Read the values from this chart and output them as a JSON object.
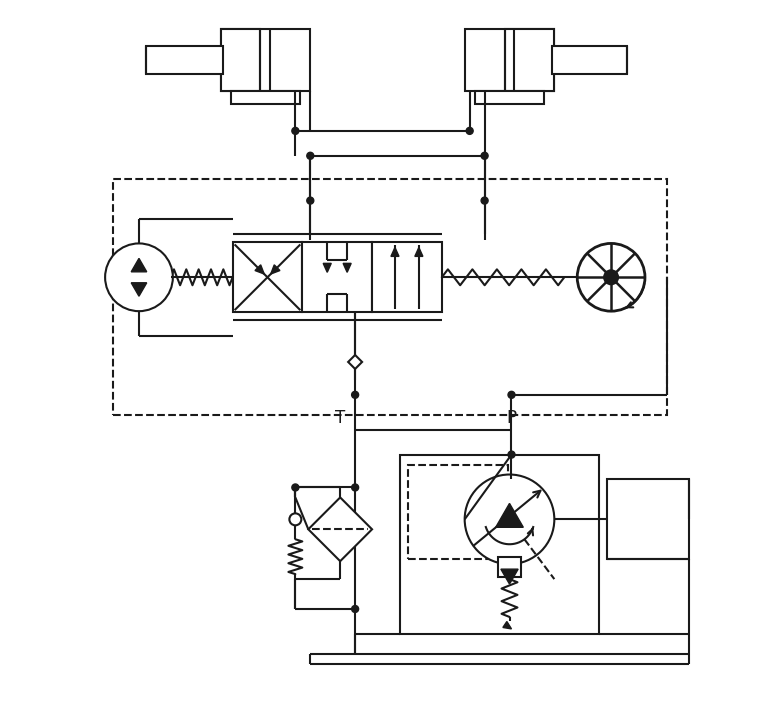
{
  "bg": "#ffffff",
  "lc": "#1a1a1a",
  "lw": 1.5,
  "figsize": [
    7.7,
    7.04
  ],
  "dpi": 100,
  "T_label": "T",
  "P_label": "P"
}
